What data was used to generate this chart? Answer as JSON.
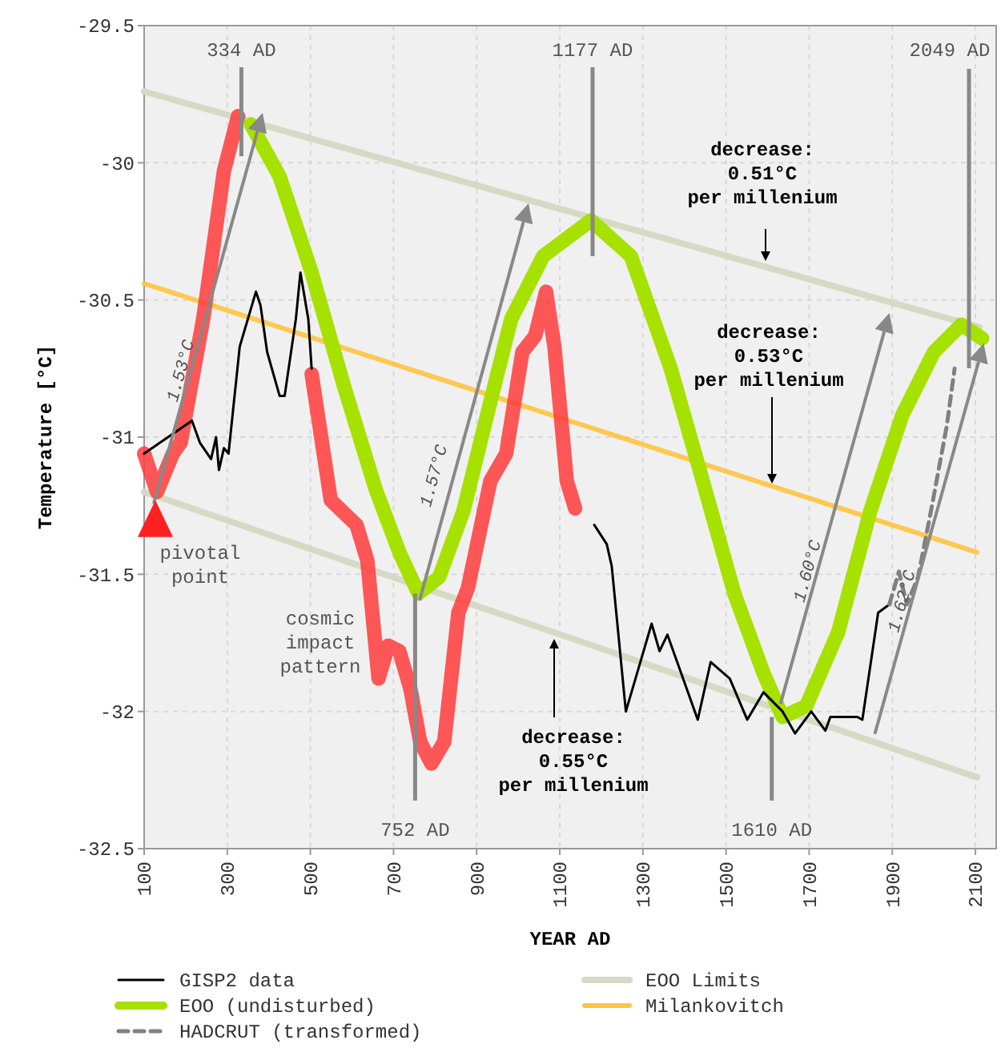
{
  "chart_data": {
    "type": "line",
    "xlabel": "YEAR AD",
    "ylabel": "Temperature [°C]",
    "xlim": [
      100,
      2150
    ],
    "xticks": [
      100,
      300,
      500,
      700,
      900,
      1100,
      1300,
      1500,
      1700,
      1900,
      2100
    ],
    "ylim": [
      -32.5,
      -29.5
    ],
    "yticks": [
      -29.5,
      -30,
      -30.5,
      -31,
      -31.5,
      -32,
      -32.5
    ],
    "grid": true,
    "legend": "bottom",
    "series": [
      {
        "name": "GISP2 data",
        "color": "#000000",
        "x": [
          100,
          215,
          234,
          261,
          273,
          280,
          292,
          303,
          330,
          369,
          380,
          396,
          426,
          438,
          465,
          476,
          495,
          503,
          840,
          1183,
          1213,
          1225,
          1259,
          1321,
          1340,
          1359,
          1432,
          1463,
          1509,
          1551,
          1590,
          1636,
          1666,
          1705,
          1739,
          1751,
          1816,
          1828,
          1866,
          1893
        ],
        "values": [
          -31.06,
          -30.94,
          -31.02,
          -31.08,
          -31.0,
          -31.12,
          -31.04,
          -31.06,
          -30.67,
          -30.47,
          -30.52,
          -30.69,
          -30.85,
          -30.85,
          -30.57,
          -30.4,
          -30.57,
          -30.75,
          null,
          -31.32,
          -31.39,
          -31.47,
          -32.0,
          -31.68,
          -31.78,
          -31.72,
          -32.03,
          -31.82,
          -31.88,
          -32.03,
          -31.93,
          -32.0,
          -32.08,
          -32.0,
          -32.07,
          -32.02,
          -32.02,
          -32.03,
          -31.64,
          -31.61
        ]
      },
      {
        "name": "EOO (undisturbed)",
        "color": "#a6e100",
        "x": [
          357,
          426,
          503,
          580,
          657,
          714,
          760,
          810,
          868,
          925,
          983,
          1060,
          1175,
          1271,
          1367,
          1444,
          1520,
          1590,
          1636,
          1693,
          1770,
          1847,
          1924,
          2000,
          2066,
          2116
        ],
        "values": [
          -29.86,
          -30.05,
          -30.4,
          -30.81,
          -31.19,
          -31.42,
          -31.57,
          -31.51,
          -31.27,
          -30.92,
          -30.57,
          -30.34,
          -30.21,
          -30.34,
          -30.75,
          -31.16,
          -31.57,
          -31.86,
          -32.02,
          -31.98,
          -31.71,
          -31.27,
          -30.92,
          -30.69,
          -30.59,
          -30.64
        ]
      },
      {
        "name": "HADCRUT (transformed)",
        "color": "#808080",
        "line_style": "dashed",
        "x": [
          1893,
          1916,
          1935,
          1962,
          1993,
          2031,
          2050
        ],
        "values": [
          -31.61,
          -31.49,
          -31.61,
          -31.51,
          -31.27,
          -30.96,
          -30.75
        ]
      },
      {
        "name": "EOO Limits",
        "color": "#d5dac5",
        "x": [
          100,
          2110
        ],
        "values": [
          -29.74,
          -30.6
        ]
      },
      {
        "name": "Milankovitch",
        "color": "#ffc340",
        "x": [
          100,
          2104
        ],
        "values": [
          -30.44,
          -31.42
        ]
      },
      {
        "color": "#d5dac5",
        "x": [
          100,
          2104
        ],
        "values": [
          -31.2,
          -32.24
        ]
      },
      {
        "color": "#ff3b3b",
        "x": [
          100,
          131,
          169,
          188,
          242,
          292,
          326,
          null,
          503,
          549,
          611,
          637,
          664,
          687,
          714,
          741,
          764,
          791,
          822,
          856,
          879,
          933,
          971,
          1010,
          1041,
          1067,
          1087,
          1117,
          1137
        ],
        "values": [
          -31.06,
          -31.2,
          -31.06,
          -31.02,
          -30.57,
          -30.03,
          -29.83,
          null,
          -30.77,
          -31.23,
          -31.32,
          -31.45,
          -31.88,
          -31.76,
          -31.78,
          -31.92,
          -32.11,
          -32.19,
          -32.11,
          -31.64,
          -31.55,
          -31.16,
          -31.06,
          -30.69,
          -30.63,
          -30.47,
          -30.67,
          -31.16,
          -31.26
        ]
      }
    ],
    "annotations": [
      {
        "text": "334 AD",
        "x": 334,
        "y": -29.83
      },
      {
        "text": "1.53°C",
        "x": 254,
        "y": -30.53
      },
      {
        "text": "1.60°C",
        "x": 1762,
        "y": -31.26
      },
      {
        "text": "1.62°C",
        "x": 1989,
        "y": -31.37
      },
      {
        "text": "pivotal\npoint",
        "x": 127,
        "y": -31.3
      },
      "1177 AD",
      "2049 AD",
      {
        "text": "752 AD",
        "x": 752,
        "y": -31.57
      },
      {
        "text": "1610 AD",
        "x": 1610,
        "y": -32.02
      },
      "1.57°C",
      "cosmic\nimpact\npattern",
      "decrease:\n0.51°C\nper millenium",
      "decrease:\n0.53°C\nper millenium",
      "decrease:\n0.55°C\nper millenium"
    ]
  }
}
